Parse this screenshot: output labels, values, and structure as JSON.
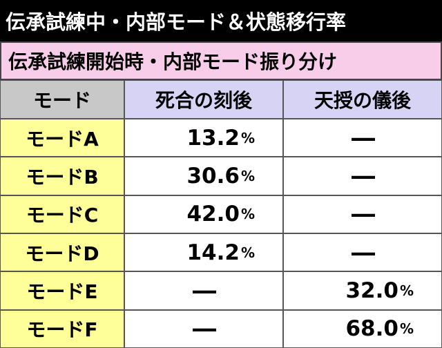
{
  "header": {
    "title": "伝承試練中・内部モード＆状態移行率"
  },
  "table": {
    "caption": "伝承試練開始時・内部モード振り分け",
    "columns": [
      "モード",
      "死合の刻後",
      "天授の儀後"
    ],
    "rows": [
      [
        {
          "text": "モードA"
        },
        {
          "number": "13.2",
          "unit": "%"
        },
        {
          "text": "―"
        }
      ],
      [
        {
          "text": "モードB"
        },
        {
          "number": "30.6",
          "unit": "%"
        },
        {
          "text": "―"
        }
      ],
      [
        {
          "text": "モードC"
        },
        {
          "number": "42.0",
          "unit": "%"
        },
        {
          "text": "―"
        }
      ],
      [
        {
          "text": "モードD"
        },
        {
          "number": "14.2",
          "unit": "%"
        },
        {
          "text": "―"
        }
      ],
      [
        {
          "text": "モードE"
        },
        {
          "text": "―"
        },
        {
          "number": "32.0",
          "unit": "%"
        }
      ],
      [
        {
          "text": "モードF"
        },
        {
          "text": "―"
        },
        {
          "number": "68.0",
          "unit": "%"
        }
      ]
    ]
  }
}
